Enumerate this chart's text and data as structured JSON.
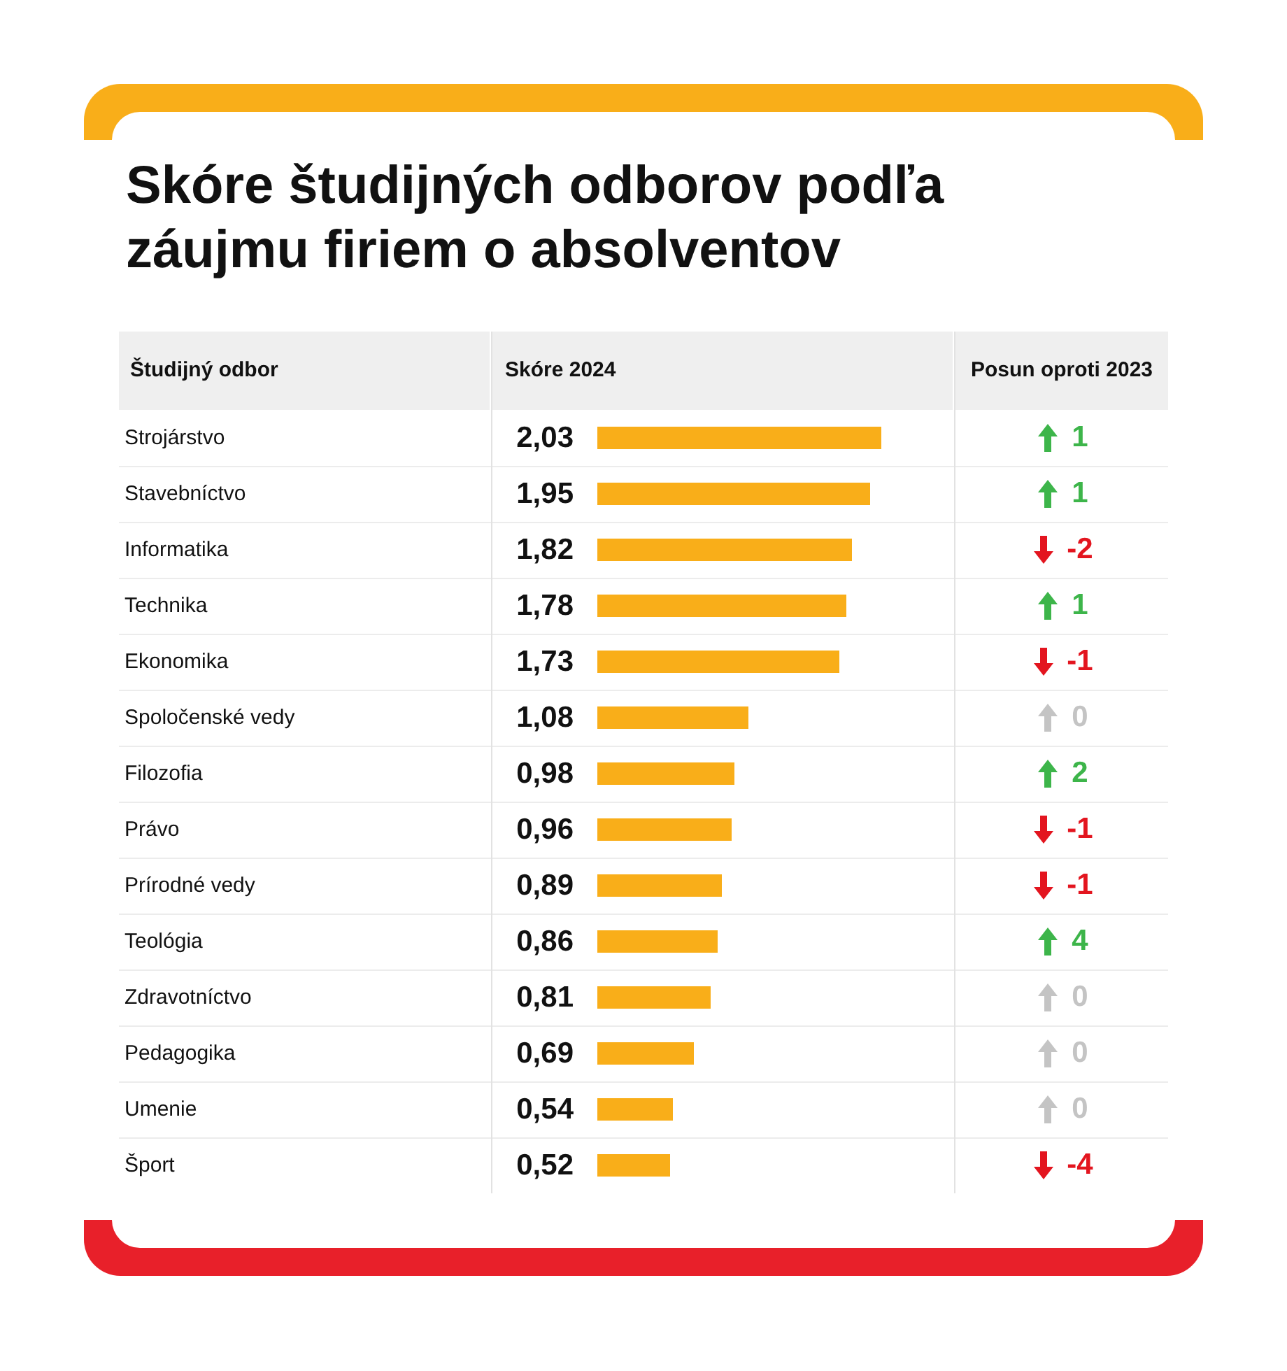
{
  "chart_data": {
    "type": "bar",
    "orientation": "horizontal",
    "title": "Skóre študijných odborov podľa záujmu firiem o absolventov",
    "ylabel": "Študijný odbor",
    "xlabel": "Skóre 2024",
    "categories": [
      "Strojárstvo",
      "Stavebníctvo",
      "Informatika",
      "Technika",
      "Ekonomika",
      "Spoločenské vedy",
      "Filozofia",
      "Právo",
      "Prírodné vedy",
      "Teológia",
      "Zdravotníctvo",
      "Pedagogika",
      "Umenie",
      "Šport"
    ],
    "values": [
      2.03,
      1.95,
      1.82,
      1.78,
      1.73,
      1.08,
      0.98,
      0.96,
      0.89,
      0.86,
      0.81,
      0.69,
      0.54,
      0.52
    ],
    "value_labels": [
      "2,03",
      "1,95",
      "1,82",
      "1,78",
      "1,73",
      "1,08",
      "0,98",
      "0,96",
      "0,89",
      "0,86",
      "0,81",
      "0,69",
      "0,54",
      "0,52"
    ],
    "color": "#f9ae19",
    "annotations": [
      "Posun oproti 2023",
      "1",
      "1",
      "-2",
      "1",
      "-1",
      "0",
      "2",
      "-1",
      "-1",
      "4",
      "0",
      "0",
      "0",
      "-4"
    ]
  }
}
